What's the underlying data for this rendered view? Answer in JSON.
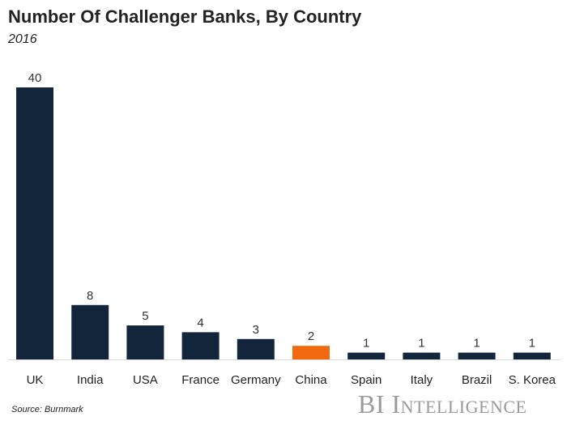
{
  "chart_data": {
    "type": "bar",
    "title": "Number Of Challenger Banks, By Country",
    "subtitle": "2016",
    "categories": [
      "UK",
      "India",
      "USA",
      "France",
      "Germany",
      "China",
      "Spain",
      "Italy",
      "Brazil",
      "S. Korea"
    ],
    "values": [
      40,
      8,
      5,
      4,
      3,
      2,
      1,
      1,
      1,
      1
    ],
    "highlight": "China",
    "colors": {
      "default": "#13253a",
      "highlight": "#f26a0f",
      "axis": "#d9d9d9"
    },
    "xlabel": "",
    "ylabel": "",
    "ylim": [
      0,
      40
    ],
    "grid": false
  },
  "source": "Source: Burnmark",
  "logo": "BI Intelligence"
}
